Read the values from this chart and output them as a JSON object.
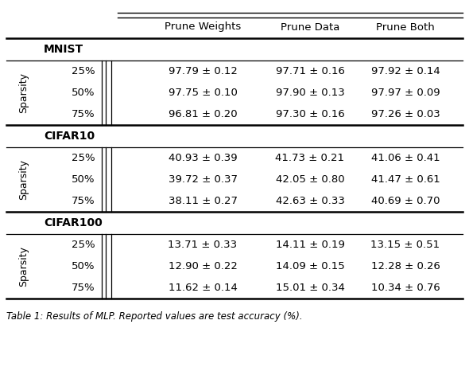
{
  "title": "Table 1: Results of MLP. Reported values are test accuracy (%).",
  "col_headers": [
    "Prune Weights",
    "Prune Data",
    "Prune Both"
  ],
  "sections": [
    {
      "name": "MNIST",
      "rows": [
        [
          "25%",
          "97.79 ± 0.12",
          "97.71 ± 0.16",
          "97.92 ± 0.14"
        ],
        [
          "50%",
          "97.75 ± 0.10",
          "97.90 ± 0.13",
          "97.97 ± 0.09"
        ],
        [
          "75%",
          "96.81 ± 0.20",
          "97.30 ± 0.16",
          "97.26 ± 0.03"
        ]
      ]
    },
    {
      "name": "CIFAR10",
      "rows": [
        [
          "25%",
          "40.93 ± 0.39",
          "41.73 ± 0.21",
          "41.06 ± 0.41"
        ],
        [
          "50%",
          "39.72 ± 0.37",
          "42.05 ± 0.80",
          "41.47 ± 0.61"
        ],
        [
          "75%",
          "38.11 ± 0.27",
          "42.63 ± 0.33",
          "40.69 ± 0.70"
        ]
      ]
    },
    {
      "name": "CIFAR100",
      "rows": [
        [
          "25%",
          "13.71 ± 0.33",
          "14.11 ± 0.19",
          "13.15 ± 0.51"
        ],
        [
          "50%",
          "12.90 ± 0.22",
          "14.09 ± 0.15",
          "12.28 ± 0.26"
        ],
        [
          "75%",
          "11.62 ± 0.14",
          "15.01 ± 0.34",
          "10.34 ± 0.76"
        ]
      ]
    }
  ],
  "background_color": "#ffffff",
  "text_color": "#000000",
  "line_color": "#000000",
  "font_size": 9.5,
  "header_font_size": 9.5,
  "section_font_size": 10.0,
  "caption_font_size": 8.5
}
